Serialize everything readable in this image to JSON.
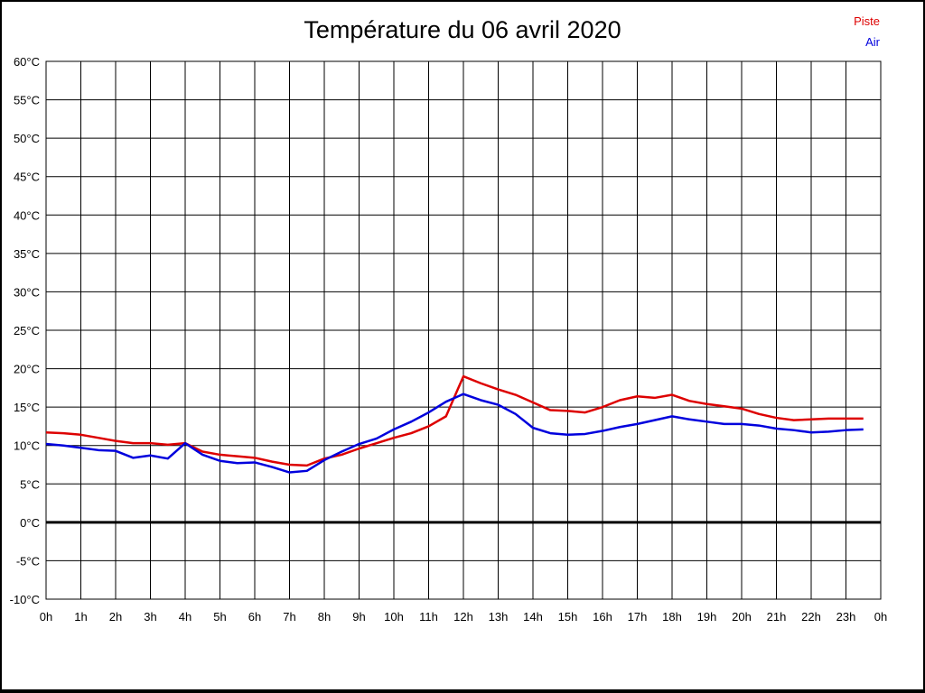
{
  "title": "Température du 06 avril 2020",
  "legend": [
    {
      "label": "Piste",
      "color": "#dd0000"
    },
    {
      "label": "Air",
      "color": "#0000dd"
    }
  ],
  "chart_data": {
    "type": "line",
    "title": "Température du 06 avril 2020",
    "xlabel": "",
    "ylabel": "",
    "x_unit": "hours",
    "y_unit": "°C",
    "xlim": [
      0,
      24
    ],
    "ylim": [
      -10,
      60
    ],
    "grid": "on",
    "grid_color": "#000000",
    "zero_line_value": 0,
    "legend_position": "top-right",
    "axes": {
      "y_tick_values": [
        60,
        55,
        50,
        45,
        40,
        35,
        30,
        25,
        20,
        15,
        10,
        5,
        0,
        -5,
        -10
      ],
      "y_tick_labels": [
        "60°C",
        "55°C",
        "50°C",
        "45°C",
        "40°C",
        "35°C",
        "30°C",
        "25°C",
        "20°C",
        "15°C",
        "10°C",
        "5°C",
        "0°C",
        "-5°C",
        "-10°C"
      ],
      "x_tick_values": [
        0,
        1,
        2,
        3,
        4,
        5,
        6,
        7,
        8,
        9,
        10,
        11,
        12,
        13,
        14,
        15,
        16,
        17,
        18,
        19,
        20,
        21,
        22,
        23,
        24
      ],
      "x_tick_labels": [
        "0h",
        "1h",
        "2h",
        "3h",
        "4h",
        "5h",
        "6h",
        "7h",
        "8h",
        "9h",
        "10h",
        "11h",
        "12h",
        "13h",
        "14h",
        "15h",
        "16h",
        "17h",
        "18h",
        "19h",
        "20h",
        "21h",
        "22h",
        "23h",
        "0h"
      ]
    },
    "x": [
      0,
      0.5,
      1,
      1.5,
      2,
      2.5,
      3,
      3.5,
      4,
      4.5,
      5,
      5.5,
      6,
      6.5,
      7,
      7.5,
      8,
      8.5,
      9,
      9.5,
      10,
      10.5,
      11,
      11.5,
      12,
      12.5,
      13,
      13.5,
      14,
      14.5,
      15,
      15.5,
      16,
      16.5,
      17,
      17.5,
      18,
      18.5,
      19,
      19.5,
      20,
      20.5,
      21,
      21.5,
      22,
      22.5,
      23,
      23.5
    ],
    "series": [
      {
        "name": "Piste",
        "color": "#dd0000",
        "values": [
          11.7,
          11.6,
          11.4,
          11.0,
          10.6,
          10.3,
          10.3,
          10.1,
          10.3,
          9.2,
          8.8,
          8.6,
          8.4,
          7.9,
          7.5,
          7.4,
          8.3,
          8.8,
          9.6,
          10.3,
          11.0,
          11.6,
          12.5,
          13.8,
          19.0,
          18.1,
          17.3,
          16.6,
          15.6,
          14.6,
          14.5,
          14.3,
          15.0,
          15.9,
          16.4,
          16.2,
          16.6,
          15.8,
          15.4,
          15.1,
          14.8,
          14.1,
          13.6,
          13.3,
          13.4,
          13.5,
          13.5,
          13.5
        ]
      },
      {
        "name": "Air",
        "color": "#0000dd",
        "values": [
          10.2,
          10.0,
          9.7,
          9.4,
          9.3,
          8.4,
          8.7,
          8.3,
          10.3,
          8.8,
          8.0,
          7.7,
          7.8,
          7.2,
          6.5,
          6.7,
          8.1,
          9.2,
          10.2,
          10.9,
          12.1,
          13.1,
          14.3,
          15.7,
          16.7,
          15.9,
          15.3,
          14.1,
          12.3,
          11.6,
          11.4,
          11.5,
          11.9,
          12.4,
          12.8,
          13.3,
          13.8,
          13.4,
          13.1,
          12.8,
          12.8,
          12.6,
          12.2,
          12.0,
          11.7,
          11.8,
          12.0,
          12.1
        ]
      }
    ]
  }
}
